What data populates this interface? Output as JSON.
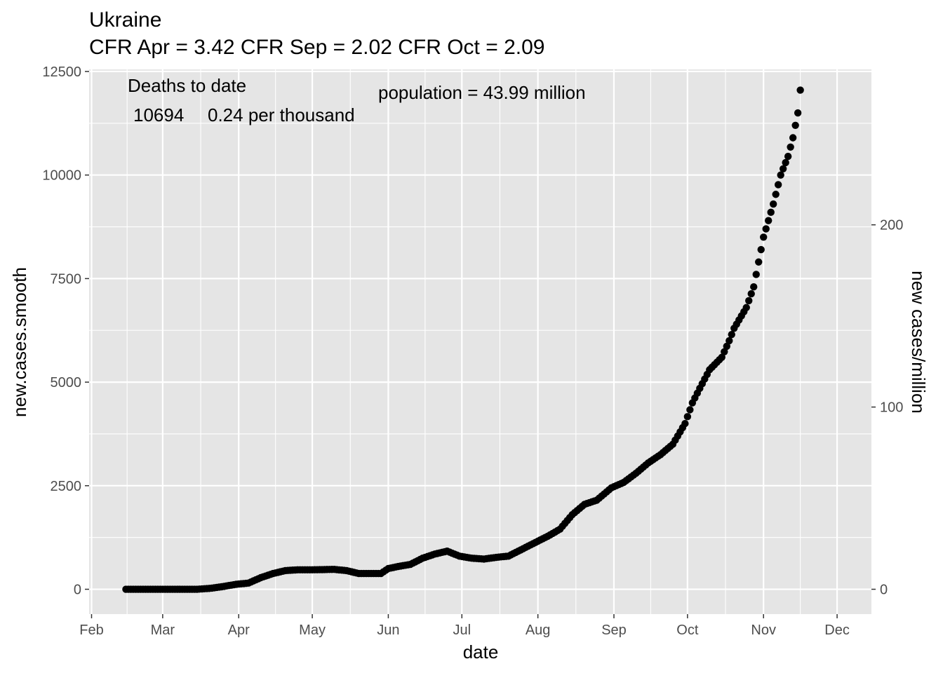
{
  "chart_data": {
    "type": "scatter",
    "title": "Ukraine",
    "subtitle": "CFR Apr = 3.42  CFR Sep = 2.02  CFR Oct = 2.09",
    "xlabel": "date",
    "ylabel": "new.cases.smooth",
    "y2label": "new cases/million",
    "x_ticks": [
      "Feb",
      "Mar",
      "Apr",
      "May",
      "Jun",
      "Jul",
      "Aug",
      "Sep",
      "Oct",
      "Nov",
      "Dec"
    ],
    "x_tick_dates": [
      "2020-02-01",
      "2020-03-01",
      "2020-04-01",
      "2020-05-01",
      "2020-06-01",
      "2020-07-01",
      "2020-08-01",
      "2020-09-01",
      "2020-10-01",
      "2020-11-01",
      "2020-12-01"
    ],
    "y_ticks": [
      "0",
      "2500",
      "5000",
      "7500",
      "10000",
      "12500"
    ],
    "y_tick_values": [
      0,
      2500,
      5000,
      7500,
      10000,
      12500
    ],
    "y2_ticks": [
      "0",
      "100",
      "200"
    ],
    "y2_tick_values": [
      0,
      100,
      200
    ],
    "ylim": [
      -600,
      12550
    ],
    "xlim": [
      "2020-01-31",
      "2020-12-15"
    ],
    "annotations": {
      "deaths_heading": "Deaths to date",
      "deaths_count": "10694",
      "deaths_rate": "0.24 per thousand",
      "population": "population = 43.99 million"
    },
    "grid": true,
    "point_color": "#000000",
    "panel_color": "#e5e5e5",
    "grid_color": "#ffffff",
    "series": [
      {
        "x": [
          "2020-02-15",
          "2020-03-01",
          "2020-03-15",
          "2020-03-20",
          "2020-03-25",
          "2020-03-31",
          "2020-04-05",
          "2020-04-10",
          "2020-04-15",
          "2020-04-20",
          "2020-04-25",
          "2020-05-01",
          "2020-05-10",
          "2020-05-15",
          "2020-05-20",
          "2020-05-25",
          "2020-05-29",
          "2020-06-01",
          "2020-06-05",
          "2020-06-10",
          "2020-06-15",
          "2020-06-20",
          "2020-06-25",
          "2020-06-30",
          "2020-07-05",
          "2020-07-10",
          "2020-07-15",
          "2020-07-20",
          "2020-07-25",
          "2020-07-30",
          "2020-08-05",
          "2020-08-10",
          "2020-08-15",
          "2020-08-20",
          "2020-08-25",
          "2020-08-31",
          "2020-09-05",
          "2020-09-10",
          "2020-09-15",
          "2020-09-20",
          "2020-09-25",
          "2020-09-30",
          "2020-10-03",
          "2020-10-06",
          "2020-10-10",
          "2020-10-15",
          "2020-10-18",
          "2020-10-20",
          "2020-10-25",
          "2020-10-28",
          "2020-11-01",
          "2020-11-05",
          "2020-11-08",
          "2020-11-11",
          "2020-11-13",
          "2020-11-15",
          "2020-11-16"
        ],
        "y": [
          0,
          0,
          0,
          20,
          60,
          120,
          150,
          280,
          380,
          450,
          470,
          470,
          480,
          450,
          380,
          380,
          380,
          500,
          550,
          600,
          750,
          850,
          920,
          800,
          750,
          730,
          770,
          800,
          950,
          1100,
          1280,
          1450,
          1800,
          2050,
          2150,
          2450,
          2580,
          2800,
          3050,
          3250,
          3500,
          4000,
          4500,
          4850,
          5300,
          5600,
          6000,
          6300,
          6800,
          7300,
          8500,
          9300,
          10000,
          10450,
          10900,
          11500,
          12050
        ]
      }
    ]
  }
}
